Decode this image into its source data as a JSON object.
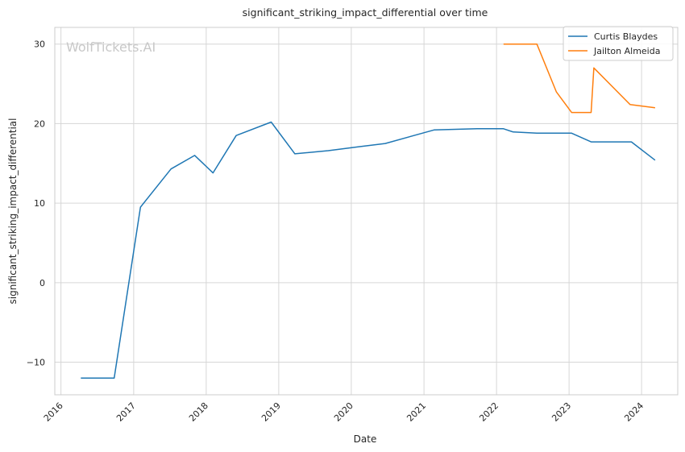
{
  "chart_data": {
    "type": "line",
    "title": "significant_striking_impact_differential over time",
    "xlabel": "Date",
    "ylabel": "significant_striking_impact_differential",
    "watermark": "WolfTickets.AI",
    "x_ticks": [
      "2016",
      "2017",
      "2018",
      "2019",
      "2020",
      "2021",
      "2022",
      "2023",
      "2024"
    ],
    "y_ticks": [
      -10,
      0,
      10,
      20,
      30
    ],
    "xlim": [
      "2015-12-01",
      "2024-07-01"
    ],
    "ylim": [
      -14.1,
      32.1
    ],
    "grid": true,
    "legend_position": "top-right",
    "colors": {
      "Curtis Blaydes": "#1f77b4",
      "Jailton Almeida": "#ff7f0e",
      "grid": "#d6d6d6",
      "axes": "#cccccc"
    },
    "series": [
      {
        "name": "Curtis Blaydes",
        "x": [
          "2016-04-10",
          "2016-09-25",
          "2017-02-04",
          "2017-07-08",
          "2017-11-04",
          "2018-02-04",
          "2018-06-01",
          "2018-11-24",
          "2019-03-23",
          "2019-09-07",
          "2020-02-08",
          "2020-06-20",
          "2021-02-20",
          "2021-09-25",
          "2022-02-05",
          "2022-03-26",
          "2022-07-23",
          "2023-01-14",
          "2023-04-22",
          "2023-11-11",
          "2024-03-09"
        ],
        "values": [
          -12.0,
          -12.0,
          9.5,
          14.3,
          16.0,
          13.8,
          18.5,
          20.2,
          16.2,
          16.6,
          17.1,
          17.5,
          19.2,
          19.35,
          19.35,
          18.95,
          18.8,
          18.8,
          17.7,
          17.7,
          15.4
        ]
      },
      {
        "name": "Jailton Almeida",
        "x": [
          "2022-02-05",
          "2022-07-23",
          "2022-10-29",
          "2023-01-14",
          "2023-04-22",
          "2023-05-06",
          "2023-11-04",
          "2024-03-09"
        ],
        "values": [
          30.0,
          30.0,
          24.0,
          21.4,
          21.4,
          27.0,
          22.4,
          22.0
        ]
      }
    ]
  }
}
